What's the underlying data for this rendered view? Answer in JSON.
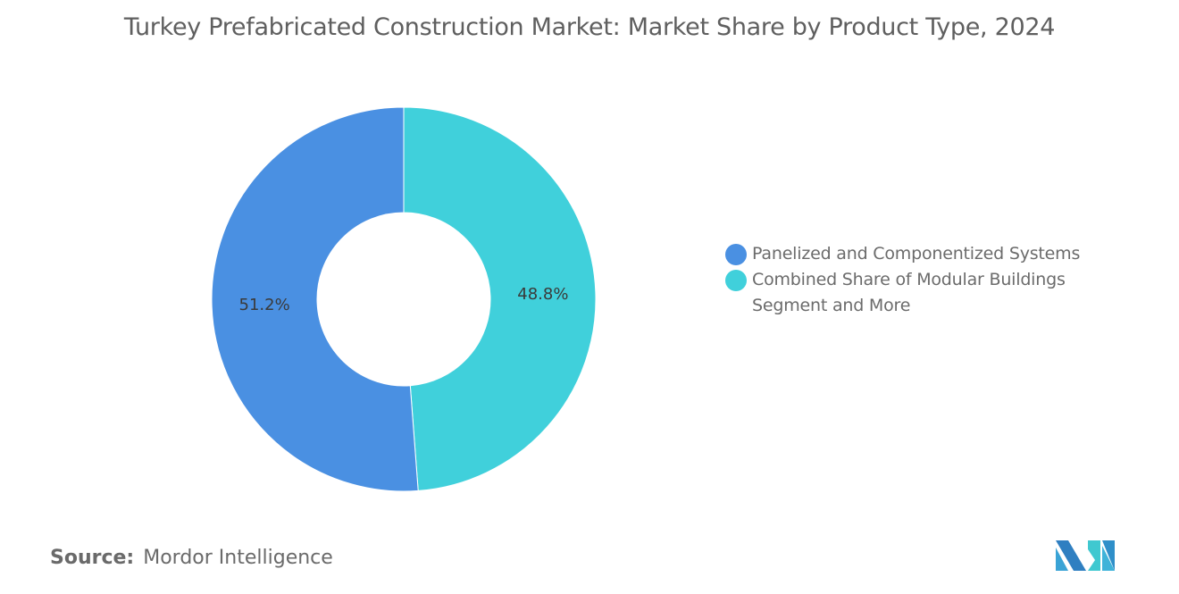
{
  "chart_data": {
    "type": "pie",
    "donut": true,
    "title": "Turkey Prefabricated Construction Market: Market Share by Product Type, 2024",
    "categories": [
      "Combined Share of Modular Buildings Segment and More",
      "Panelized and Componentized Systems"
    ],
    "values": [
      48.8,
      51.2
    ],
    "labels": [
      "48.8%",
      "51.2%"
    ],
    "colors": [
      "#40D0DB",
      "#4A90E2"
    ],
    "legend": {
      "placement": "right",
      "entries": [
        {
          "label": "Panelized and Componentized Systems",
          "color": "#4A90E2"
        },
        {
          "label": "Combined Share of Modular Buildings Segment and More",
          "color": "#40D0DB"
        }
      ]
    }
  },
  "source": {
    "label": "Source:",
    "value": "Mordor Intelligence"
  },
  "logo": {
    "name": "mordor-intelligence-logo"
  }
}
